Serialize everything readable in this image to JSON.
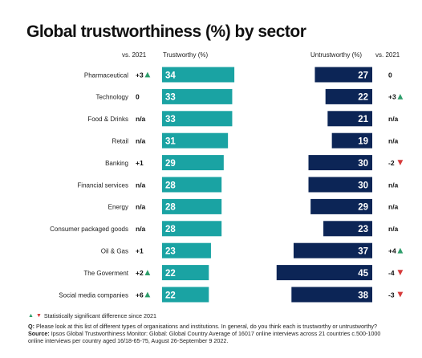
{
  "title": "Global trustworthiness (%) by sector",
  "headers": {
    "vs_left": "vs. 2021",
    "trustworthy": "Trustworthy (%)",
    "untrustworthy": "Untrustworthy (%)",
    "vs_right": "vs. 2021"
  },
  "colors": {
    "trust_bar": "#1aa3a3",
    "untrust_bar": "#0c2556",
    "up": "#2e9e6b",
    "down": "#d63a3a"
  },
  "chart_data": {
    "type": "bar",
    "categories": [
      "Pharmaceutical",
      "Technology",
      "Food & Drinks",
      "Retail",
      "Banking",
      "Financial services",
      "Energy",
      "Consumer packaged goods",
      "Oil & Gas",
      "The Goverment",
      "Social media companies"
    ],
    "series": [
      {
        "name": "Trustworthy (%)",
        "values": [
          34,
          33,
          33,
          31,
          29,
          28,
          28,
          28,
          23,
          22,
          22
        ],
        "change_vs_2021": [
          "+3",
          "0",
          "n/a",
          "n/a",
          "+1",
          "n/a",
          "n/a",
          "n/a",
          "+1",
          "+2",
          "+6"
        ],
        "significance": [
          "up",
          "",
          "",
          "",
          "",
          "",
          "",
          "",
          "",
          "up",
          "up"
        ]
      },
      {
        "name": "Untrustworthy (%)",
        "values": [
          27,
          22,
          21,
          19,
          30,
          30,
          29,
          23,
          37,
          45,
          38
        ],
        "change_vs_2021": [
          "0",
          "+3",
          "n/a",
          "n/a",
          "-2",
          "n/a",
          "n/a",
          "n/a",
          "+4",
          "-4",
          "-3"
        ],
        "significance": [
          "",
          "up",
          "",
          "",
          "down",
          "",
          "",
          "",
          "up",
          "down",
          "down"
        ]
      }
    ]
  },
  "legend_note": "Statistically significant difference since 2021",
  "question_label": "Q:",
  "question_text": "Please look at this list of different types of organisations and institutions. In general, do you think each is trustworthy or untrustworthy?",
  "source_label": "Source:",
  "source_text": "Ipsos Global Trustworthiness Monitor: Global: Global Country Average of 16017 online interviews across 21 countries c.500-1000 online interviews per country aged 16/18-65-75, August 26-September 9 2022."
}
